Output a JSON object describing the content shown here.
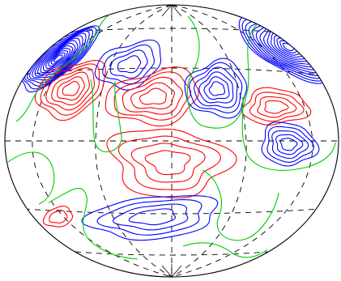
{
  "figure": {
    "projection": "hammer-aitoff-ellipse",
    "colors": {
      "positive": "#ff0000",
      "negative": "#0000ff",
      "zero": "#00cc00",
      "grid": "#000000",
      "outline": "#000000",
      "background": "#ffffff"
    },
    "grid_style": "dashed",
    "features": [
      {
        "name": "negative-contours-northwest",
        "sign": "negative",
        "levels": 14
      },
      {
        "name": "positive-contours-northwest",
        "sign": "positive",
        "levels": 6
      },
      {
        "name": "negative-contours-north-center",
        "sign": "negative",
        "levels": 4
      },
      {
        "name": "positive-contours-center",
        "sign": "positive",
        "levels": 5
      },
      {
        "name": "negative-contours-northeast",
        "sign": "negative",
        "levels": 6
      },
      {
        "name": "negative-contours-east-edge",
        "sign": "negative",
        "levels": 14
      },
      {
        "name": "positive-contours-east",
        "sign": "positive",
        "levels": 4
      },
      {
        "name": "negative-contours-east",
        "sign": "negative",
        "levels": 5
      },
      {
        "name": "positive-contours-south-center",
        "sign": "positive",
        "levels": 4
      },
      {
        "name": "negative-contours-south",
        "sign": "negative",
        "levels": 4
      },
      {
        "name": "positive-contours-southwest",
        "sign": "positive",
        "levels": 2
      }
    ]
  }
}
